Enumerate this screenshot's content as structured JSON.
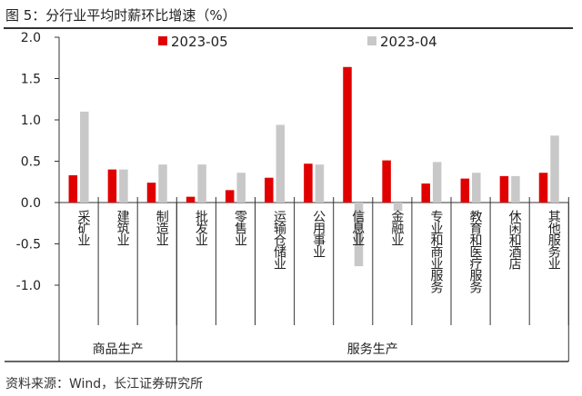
{
  "title": "图 5：分行业平均时薪环比增速（%）",
  "source": "资料来源：Wind，长江证券研究所",
  "colors": {
    "series1": "#e00000",
    "series2": "#c8c8c8"
  },
  "chart_data": {
    "type": "bar",
    "title": "图 5：分行业平均时薪环比增速（%）",
    "xlabel": "",
    "ylabel": "",
    "ylim": [
      -1.5,
      2.0
    ],
    "yticks": [
      2.0,
      1.5,
      1.0,
      0.5,
      0.0,
      -0.5,
      -1.0
    ],
    "ytick_labels": [
      "2.0",
      "1.5",
      "1.0",
      "0.5",
      "0.0",
      "-0.5",
      "-1.0"
    ],
    "legend_position": "top-center",
    "grid": false,
    "categories": [
      "采矿业",
      "建筑业",
      "制造业",
      "批发业",
      "零售业",
      "运输仓储业",
      "公用事业",
      "信息业",
      "金融业",
      "专业和商业服务",
      "教育和医疗服务",
      "休闲和酒店",
      "其他服务业"
    ],
    "groups": [
      {
        "label": "商品生产",
        "count": 3
      },
      {
        "label": "服务生产",
        "count": 10
      }
    ],
    "series": [
      {
        "name": "2023-05",
        "values": [
          0.33,
          0.4,
          0.24,
          0.07,
          0.15,
          0.3,
          0.47,
          1.64,
          0.51,
          0.23,
          0.29,
          0.32,
          0.36
        ]
      },
      {
        "name": "2023-04",
        "values": [
          1.1,
          0.4,
          0.46,
          0.46,
          0.36,
          0.94,
          0.46,
          -0.77,
          -0.1,
          0.49,
          0.36,
          0.32,
          0.81
        ]
      }
    ]
  }
}
